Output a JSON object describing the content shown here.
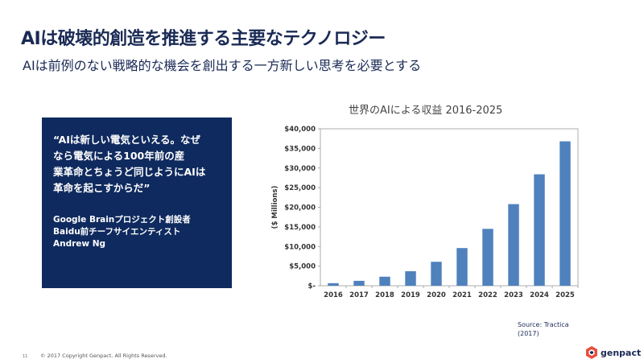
{
  "slide": {
    "title": "AIは破壊的創造を推進する主要なテクノロジー",
    "subtitle": "AIは前例のない戦略的な機会を創出する一方新しい思考を必要とする"
  },
  "quote": {
    "lines": [
      "“AIは新しい電気といえる。なぜ",
      "なら電気による100年前の産",
      "業革命とちょうど同じようにAIは",
      "革命を起こすからだ”"
    ],
    "attribution": [
      "Google Brainプロジェクト創設者",
      "Baidu前チーフサイエンティスト",
      "Andrew Ng"
    ]
  },
  "chart_title": "世界のAIによる収益 2016-2025",
  "source": [
    "Source: Tractica",
    "(2017)"
  ],
  "footer": {
    "page": "11",
    "copyright": "© 2017 Copyright Genpact. All Rights Reserved."
  },
  "logo": {
    "text": "genpact",
    "colors": [
      "#e84d3d",
      "#0f2a5e"
    ]
  },
  "chart_data": {
    "type": "bar",
    "categories": [
      "2016",
      "2017",
      "2018",
      "2019",
      "2020",
      "2021",
      "2022",
      "2023",
      "2024",
      "2025"
    ],
    "values": [
      650,
      1250,
      2300,
      3700,
      6100,
      9600,
      14500,
      20800,
      28400,
      36800
    ],
    "ylabel": "($ Millions)",
    "ylim": [
      0,
      40000
    ],
    "yticks": [
      "$-",
      "$5,000",
      "$10,000",
      "$15,000",
      "$20,000",
      "$25,000",
      "$30,000",
      "$35,000",
      "$40,000"
    ],
    "bar_color": "#4f81bd",
    "grid": false
  }
}
